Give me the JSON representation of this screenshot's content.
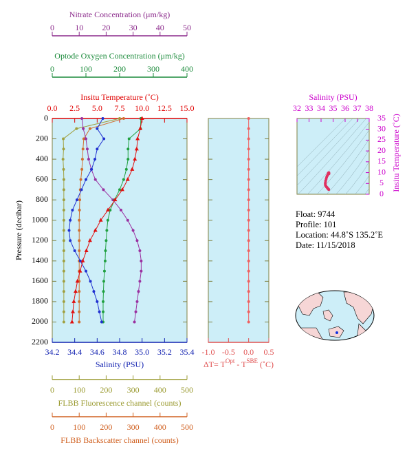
{
  "chart_data": [
    {
      "type": "profile",
      "ylabel": "Pressure (decibar)",
      "ylim": [
        0,
        2200
      ],
      "y_reversed": true,
      "yticks": [
        0,
        200,
        400,
        600,
        800,
        1000,
        1200,
        1400,
        1600,
        1800,
        2000,
        2200
      ],
      "background": "#cdeef8",
      "y": [
        0,
        100,
        200,
        300,
        400,
        500,
        600,
        700,
        800,
        900,
        1000,
        1100,
        1200,
        1300,
        1400,
        1500,
        1600,
        1700,
        1800,
        1900,
        2000
      ],
      "x_axes": [
        {
          "label": "Insitu Temperature (˚C)",
          "position": "top",
          "color": "#e00000",
          "lim": [
            0,
            15
          ],
          "ticks": [
            {
              "value": 0,
              "label": "0.0"
            },
            2.5,
            {
              "value": 5,
              "label": "5.0"
            },
            7.5,
            {
              "value": 10,
              "label": "10.0"
            },
            12.5,
            {
              "value": 15,
              "label": "15.0"
            }
          ]
        },
        {
          "label": "Optode Oxygen Concentration (μm/kg)",
          "position": "top",
          "color": "#1a8a3a",
          "lim": [
            0,
            400
          ],
          "ticks": [
            0,
            100,
            200,
            300,
            400
          ]
        },
        {
          "label": "Nitrate Concentration (μm/kg)",
          "position": "top",
          "color": "#8b2a8b",
          "lim": [
            0,
            50
          ],
          "ticks": [
            0,
            10,
            20,
            30,
            40,
            50
          ]
        },
        {
          "label": "Salinity (PSU)",
          "position": "bottom",
          "color": "#1020b0",
          "lim": [
            34.2,
            35.4
          ],
          "ticks": [
            34.2,
            34.4,
            34.6,
            34.8,
            {
              "value": 35,
              "label": "35.0"
            },
            35.2,
            35.4
          ]
        },
        {
          "label": "FLBB Fluorescence channel (counts)",
          "position": "bottom",
          "color": "#9a9a30",
          "lim": [
            0,
            500
          ],
          "ticks": [
            0,
            100,
            200,
            300,
            400,
            500
          ]
        },
        {
          "label": "FLBB Backscatter channel (counts)",
          "position": "bottom",
          "color": "#d06020",
          "lim": [
            0,
            500
          ],
          "ticks": [
            0,
            100,
            200,
            300,
            400,
            500
          ]
        }
      ],
      "series": [
        {
          "axis": 4,
          "color": "#a0a040",
          "marker": "circle",
          "values": [
            250,
            90,
            41,
            42,
            40,
            42,
            43,
            43,
            43,
            43,
            43,
            43,
            43,
            43,
            43,
            43,
            43,
            43,
            43,
            43,
            43
          ]
        },
        {
          "axis": 5,
          "color": "#d07030",
          "marker": "circle",
          "values": [
            265,
            140,
            117,
            114,
            112,
            110,
            106,
            104,
            102,
            101,
            100,
            100,
            100,
            100,
            100,
            100,
            100,
            100,
            100,
            100,
            100
          ]
        },
        {
          "axis": 2,
          "color": "#9a30a0",
          "marker": "circle",
          "values": [
            11,
            11.5,
            12.5,
            13,
            13.5,
            14.5,
            16,
            19,
            22.5,
            25.5,
            28,
            30,
            31.5,
            32.5,
            33,
            33,
            32.5,
            32,
            31.5,
            31,
            30.5
          ]
        },
        {
          "axis": 1,
          "color": "#20a040",
          "marker": "circle",
          "values": [
            263,
            262,
            228,
            225,
            225,
            220,
            212,
            200,
            185,
            172,
            165,
            162,
            160,
            158,
            157,
            155,
            153,
            152,
            151,
            151,
            151
          ]
        },
        {
          "axis": 3,
          "color": "#2030d0",
          "marker": "circle",
          "values": [
            34.65,
            34.6,
            34.66,
            34.6,
            34.58,
            34.55,
            34.5,
            34.46,
            34.42,
            34.38,
            34.36,
            34.35,
            34.36,
            34.4,
            34.45,
            34.5,
            34.54,
            34.57,
            34.6,
            34.62,
            34.64
          ]
        },
        {
          "axis": 0,
          "color": "#e01010",
          "marker": "triangle",
          "values": [
            10,
            9.8,
            9.5,
            9.4,
            9.2,
            8.9,
            8.4,
            7.8,
            7.0,
            6.2,
            5.4,
            4.8,
            4.2,
            3.8,
            3.4,
            3.1,
            2.8,
            2.6,
            2.4,
            2.3,
            2.2
          ]
        }
      ]
    },
    {
      "type": "profile",
      "ylim": [
        0,
        2200
      ],
      "y_reversed": true,
      "yticks": [
        0,
        200,
        400,
        600,
        800,
        1000,
        1200,
        1400,
        1600,
        1800,
        2000,
        2200
      ],
      "background": "#cdeef8",
      "y": [
        0,
        100,
        200,
        300,
        400,
        500,
        600,
        700,
        800,
        900,
        1000,
        1100,
        1200,
        1300,
        1400,
        1500,
        1600,
        1700,
        1800,
        1900,
        2000
      ],
      "x_axes": [
        {
          "label_parts": [
            "ΔT= T",
            "Opt",
            " - T",
            "SBE",
            " (˚C)"
          ],
          "position": "bottom",
          "color": "#e05050",
          "lim": [
            -1,
            0.5
          ],
          "ticks": [
            {
              "value": -1,
              "label": "-1.0"
            },
            -0.5,
            {
              "value": 0,
              "label": "0.0"
            },
            0.5
          ]
        }
      ],
      "series": [
        {
          "axis": 0,
          "color": "#f06060",
          "marker": "circle",
          "values": [
            0,
            0,
            0,
            0,
            0,
            0,
            0,
            0,
            0,
            0,
            0,
            0,
            0,
            0,
            0,
            0,
            0,
            0,
            0,
            0,
            0
          ]
        }
      ]
    },
    {
      "type": "ts",
      "xlabel": "Salinity (PSU)",
      "ylabel": "Insitu Temperature (˚C)",
      "xlim": [
        32,
        38
      ],
      "xticks": [
        32,
        33,
        34,
        35,
        36,
        37,
        38
      ],
      "ylim": [
        0,
        35
      ],
      "yticks": [
        0,
        5,
        10,
        15,
        20,
        25,
        30,
        35
      ],
      "axis_color": "#cc00cc",
      "background": "#cdeef8",
      "color": "#e03060",
      "x": [
        34.65,
        34.6,
        34.66,
        34.6,
        34.58,
        34.55,
        34.5,
        34.46,
        34.42,
        34.38,
        34.36,
        34.35,
        34.36,
        34.4,
        34.45,
        34.5,
        34.54,
        34.57,
        34.6,
        34.62,
        34.64
      ],
      "y": [
        10,
        9.8,
        9.5,
        9.4,
        9.2,
        8.9,
        8.4,
        7.8,
        7.0,
        6.2,
        5.4,
        4.8,
        4.2,
        3.8,
        3.4,
        3.1,
        2.8,
        2.6,
        2.4,
        2.3,
        2.2
      ]
    }
  ],
  "info": {
    "float": "Float:  9744",
    "profile": "Profile:  101",
    "location": "Location:  44.8˚S  135.2˚E",
    "date": "Date:  11/15/2018"
  }
}
